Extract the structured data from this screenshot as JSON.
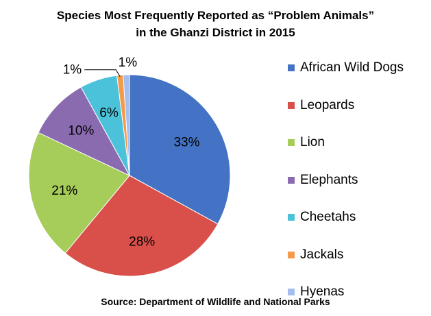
{
  "chart_data": {
    "type": "pie",
    "title": "Species Most Frequently Reported as “Problem Animals”",
    "subtitle": "in the Ghanzi District in 2015",
    "source": "Source: Department of Wildlife and National Parks",
    "legend_position": "right",
    "categories": [
      "African Wild Dogs",
      "Leopards",
      "Lion",
      "Elephants",
      "Cheetahs",
      "Jackals",
      "Hyenas"
    ],
    "values": [
      33,
      28,
      21,
      10,
      6,
      1,
      1
    ],
    "value_labels": [
      "33%",
      "28%",
      "21%",
      "10%",
      "6%",
      "1%",
      "1%"
    ],
    "colors": [
      "#4472C4",
      "#D9504A",
      "#A6CC5A",
      "#8B6BAF",
      "#4BC2DA",
      "#F39A4B",
      "#A5BEEE"
    ]
  }
}
